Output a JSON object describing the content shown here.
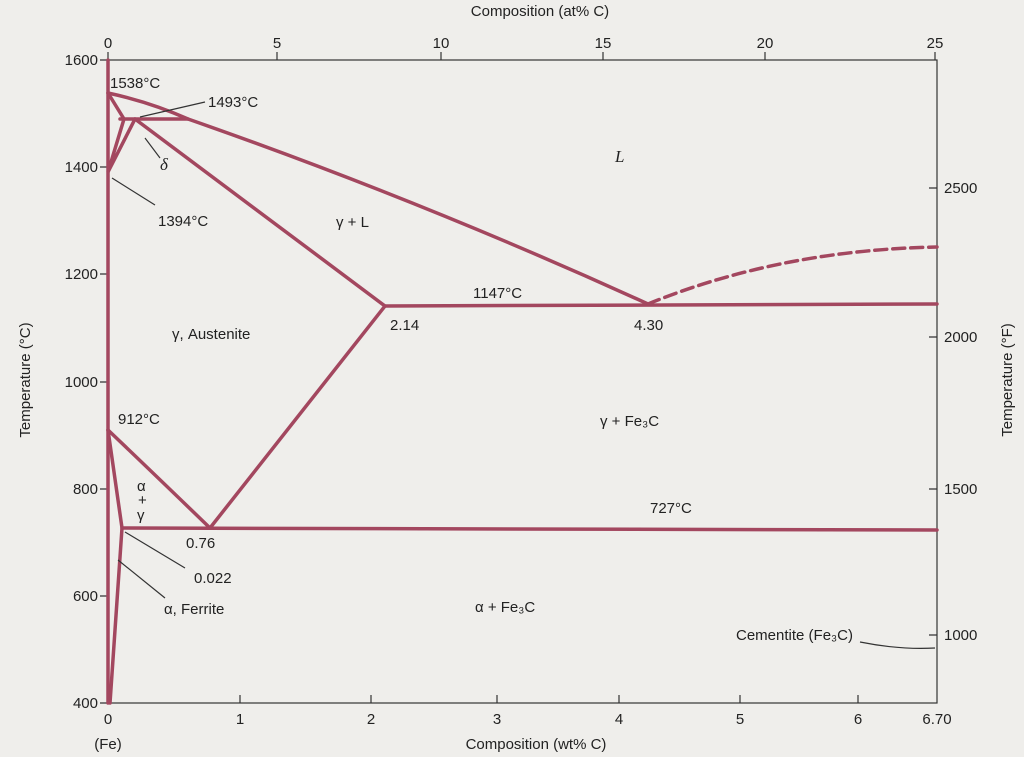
{
  "top_axis": {
    "title": "Composition (at% C)",
    "ticks": [
      "0",
      "5",
      "10",
      "15",
      "20",
      "25"
    ]
  },
  "left_axis": {
    "title": "Temperature (°C)",
    "ticks": [
      "1600",
      "1400",
      "1200",
      "1000",
      "800",
      "600",
      "400"
    ]
  },
  "right_axis": {
    "title": "Temperature (°F)",
    "ticks": [
      "2500",
      "2000",
      "1500",
      "1000"
    ]
  },
  "bottom_axis": {
    "title": "Composition (wt% C)",
    "ticks": [
      "0",
      "1",
      "2",
      "3",
      "4",
      "5",
      "6",
      "6.70"
    ],
    "origin_label": "(Fe)"
  },
  "labels": {
    "t1538": "1538°C",
    "t1493": "1493°C",
    "delta": "δ",
    "t1394": "1394°C",
    "liquid": "L",
    "gamma_l": "γ + L",
    "austenite": "γ, Austenite",
    "t1147": "1147°C",
    "c214": "2.14",
    "c430": "4.30",
    "t912": "912°C",
    "gamma_fe3c": "γ + Fe₃C",
    "alpha": "α",
    "plus": "+",
    "gamma": "γ",
    "t727": "727°C",
    "c076": "0.76",
    "c0022": "0.022",
    "ferrite": "α, Ferrite",
    "alpha_fe3c": "α + Fe₃C",
    "cementite": "Cementite (Fe₃C)"
  }
}
